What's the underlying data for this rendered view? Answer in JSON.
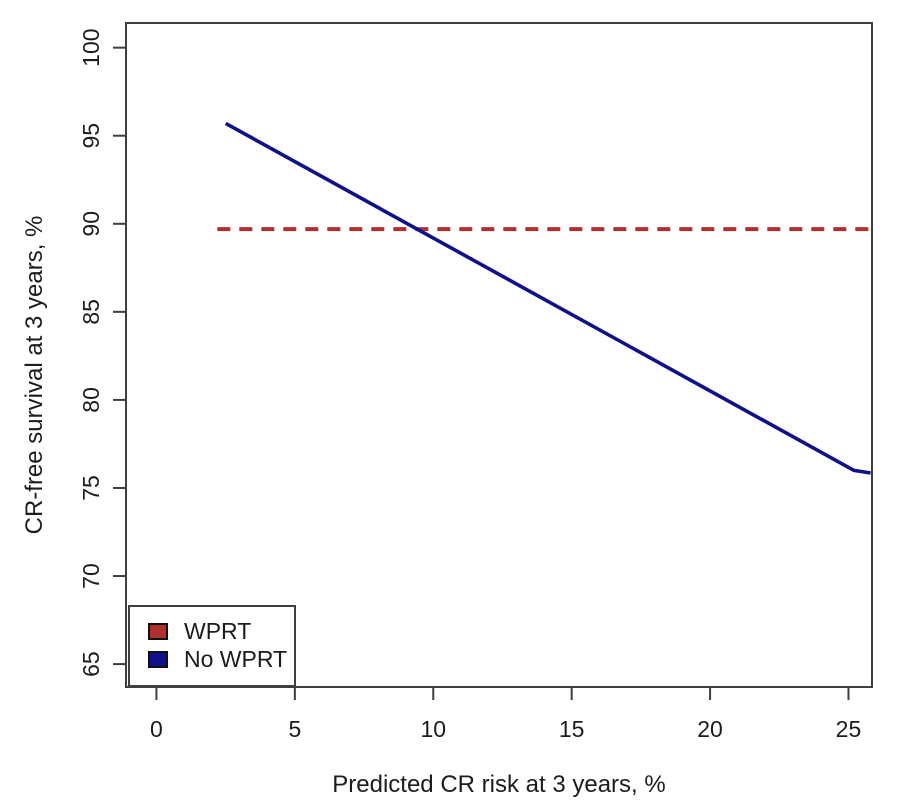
{
  "chart_data": {
    "type": "line",
    "title": "",
    "xlabel": "Predicted CR risk at 3 years, %",
    "ylabel": "CR-free survival at 3 years, %",
    "x_ticks": [
      0,
      5,
      10,
      15,
      20,
      25
    ],
    "y_ticks": [
      65,
      70,
      75,
      80,
      85,
      90,
      95,
      100
    ],
    "xlim": [
      -1.1,
      25.85
    ],
    "ylim": [
      63.7,
      101.4
    ],
    "grid": false,
    "legend_position": "bottom-left",
    "series": [
      {
        "name": "WPRT",
        "style": "dashed",
        "color": "#b03030",
        "points": [
          [
            2.2,
            89.7
          ],
          [
            25.8,
            89.7
          ]
        ]
      },
      {
        "name": "No WPRT",
        "style": "solid",
        "color": "#10108a",
        "points": [
          [
            2.5,
            95.7
          ],
          [
            25.2,
            76.0
          ],
          [
            25.8,
            75.85
          ]
        ]
      }
    ]
  },
  "legend": {
    "items": [
      {
        "label": "WPRT",
        "color": "#b03030"
      },
      {
        "label": "No WPRT",
        "color": "#10108a"
      }
    ]
  },
  "colors": {
    "axis": "#3f3f3f",
    "text": "#1c1c1c",
    "background": "#ffffff"
  }
}
